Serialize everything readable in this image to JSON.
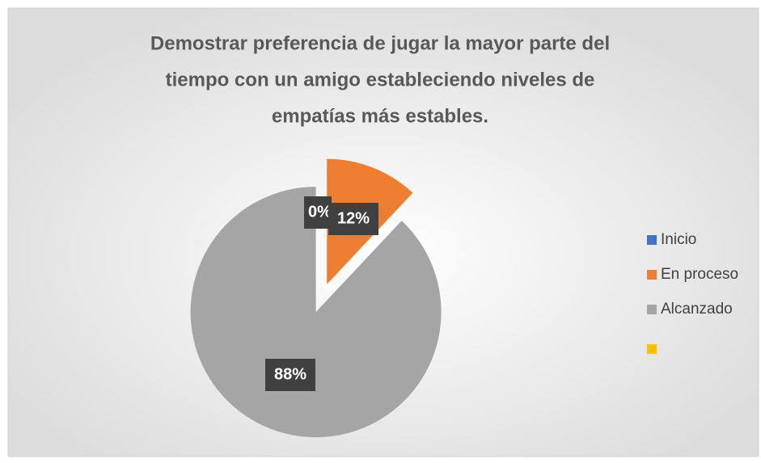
{
  "chart_data": {
    "type": "pie",
    "title": [
      "Demostrar preferencia de jugar la mayor parte del",
      "tiempo con un amigo estableciendo niveles de",
      "empatías más estables."
    ],
    "categories": [
      "Inicio",
      "En proceso",
      "Alcanzado",
      null
    ],
    "values": [
      0,
      12,
      88,
      0
    ],
    "value_labels": [
      "0%",
      "12%",
      "88%",
      null
    ],
    "colors": [
      "#4472c4",
      "#ed7d31",
      "#a5a5a5",
      "#ffc000"
    ],
    "legend": "right"
  }
}
